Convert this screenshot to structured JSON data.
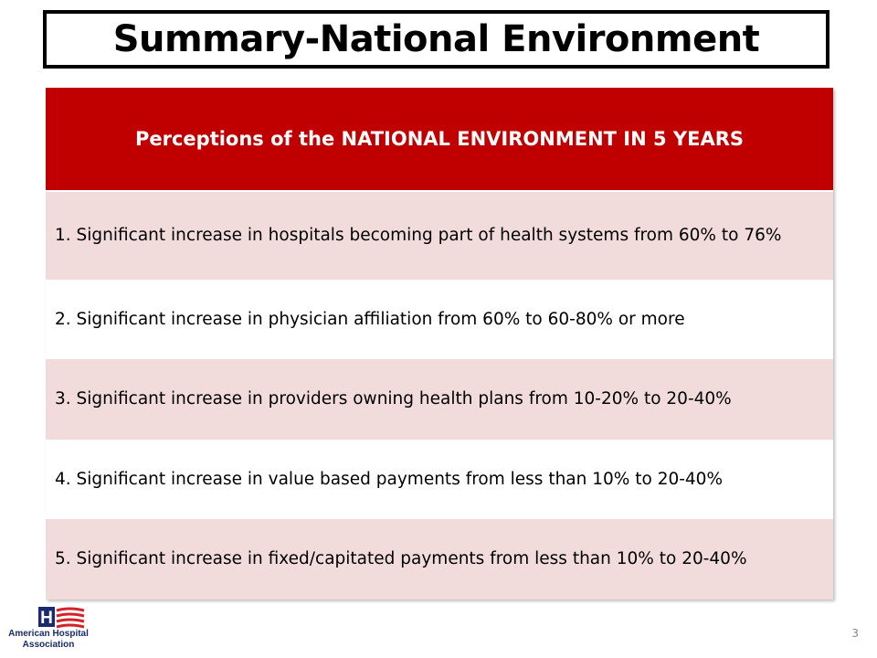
{
  "slide": {
    "title": "Summary-National Environment",
    "page_number": "3"
  },
  "table": {
    "header": "Perceptions of the NATIONAL ENVIRONMENT IN 5 YEARS",
    "rows": [
      "1. Significant increase in hospitals becoming part of health systems from 60% to 76%",
      "2. Significant increase in physician affiliation from 60% to 60-80% or more",
      "3. Significant increase in providers owning health plans from 10-20% to 20-40%",
      "4. Significant increase in value based payments from less than 10% to 20-40%",
      "5. Significant increase in fixed/capitated payments from less than 10% to 20-40%"
    ]
  },
  "logo": {
    "mark_letter": "H",
    "line1": "American Hospital",
    "line2": "Association"
  },
  "colors": {
    "header_bg": "#c00000",
    "row_odd_bg": "#f2dcdb",
    "row_even_bg": "#ffffff",
    "logo_blue": "#1a2a6c",
    "logo_red": "#d2232a"
  }
}
